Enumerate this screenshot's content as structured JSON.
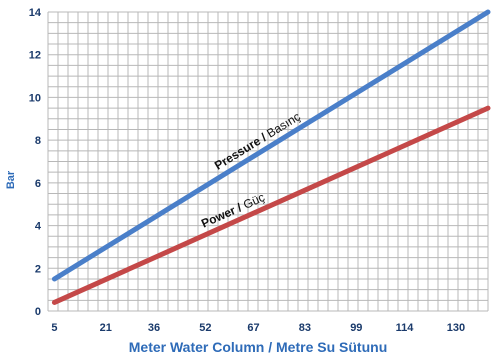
{
  "chart_data": {
    "type": "line",
    "xlabel": "Meter Water Column / Metre Su Sütunu",
    "ylabel": "Bar",
    "x_ticks": [
      "5",
      "21",
      "36",
      "52",
      "67",
      "83",
      "99",
      "114",
      "130"
    ],
    "y_ticks": [
      "0",
      "2",
      "4",
      "6",
      "8",
      "10",
      "12",
      "14"
    ],
    "xlim": [
      3,
      140
    ],
    "ylim": [
      0,
      14
    ],
    "grid": true,
    "series": [
      {
        "name": "Pressure / Basınç",
        "label_main": "Pressure",
        "label_sep": " / ",
        "label_alt": "Basınç",
        "color": "#4a7fc9",
        "points": [
          [
            5,
            1.5
          ],
          [
            140,
            14
          ]
        ]
      },
      {
        "name": "Power / Güç",
        "label_main": "Power",
        "label_sep": " / ",
        "label_alt": "Güç",
        "color": "#c44848",
        "points": [
          [
            5,
            0.4
          ],
          [
            140,
            9.5
          ]
        ]
      }
    ],
    "colors": {
      "grid": "#b8b8b8",
      "tick_text": "#1a3a6b",
      "axis_title": "#2e6bb8",
      "series_label_text": "#111111"
    }
  }
}
